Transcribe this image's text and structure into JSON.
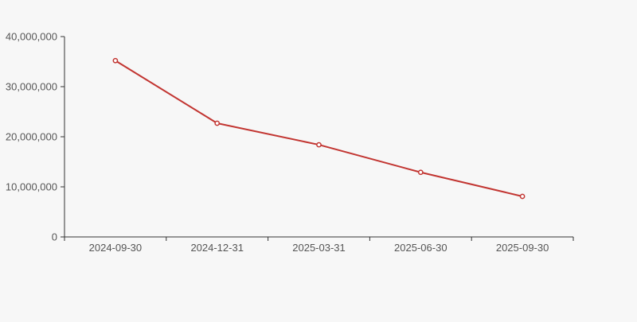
{
  "page": {
    "background_color": "#f7f7f7"
  },
  "chart_data": {
    "type": "line",
    "title": "",
    "xlabel": "",
    "ylabel": "",
    "categories": [
      "2024-09-30",
      "2024-12-31",
      "2025-03-31",
      "2025-06-30",
      "2025-09-30"
    ],
    "series": [
      {
        "name": "series-1",
        "values": [
          35200000,
          22700000,
          18400000,
          12900000,
          8100000
        ]
      }
    ],
    "ylim": [
      0,
      40000000
    ],
    "y_ticks": [
      0,
      10000000,
      20000000,
      30000000,
      40000000
    ],
    "y_tick_labels": [
      "0",
      "10,000,000",
      "20,000,000",
      "30,000,000",
      "40,000,000"
    ],
    "grid": false,
    "legend": false,
    "legend_position": "none",
    "line_color": "#c23531",
    "marker_style": "hollow-circle",
    "marker_fill": "#ffffff",
    "axis_color": "#333333",
    "label_color": "#555555"
  }
}
